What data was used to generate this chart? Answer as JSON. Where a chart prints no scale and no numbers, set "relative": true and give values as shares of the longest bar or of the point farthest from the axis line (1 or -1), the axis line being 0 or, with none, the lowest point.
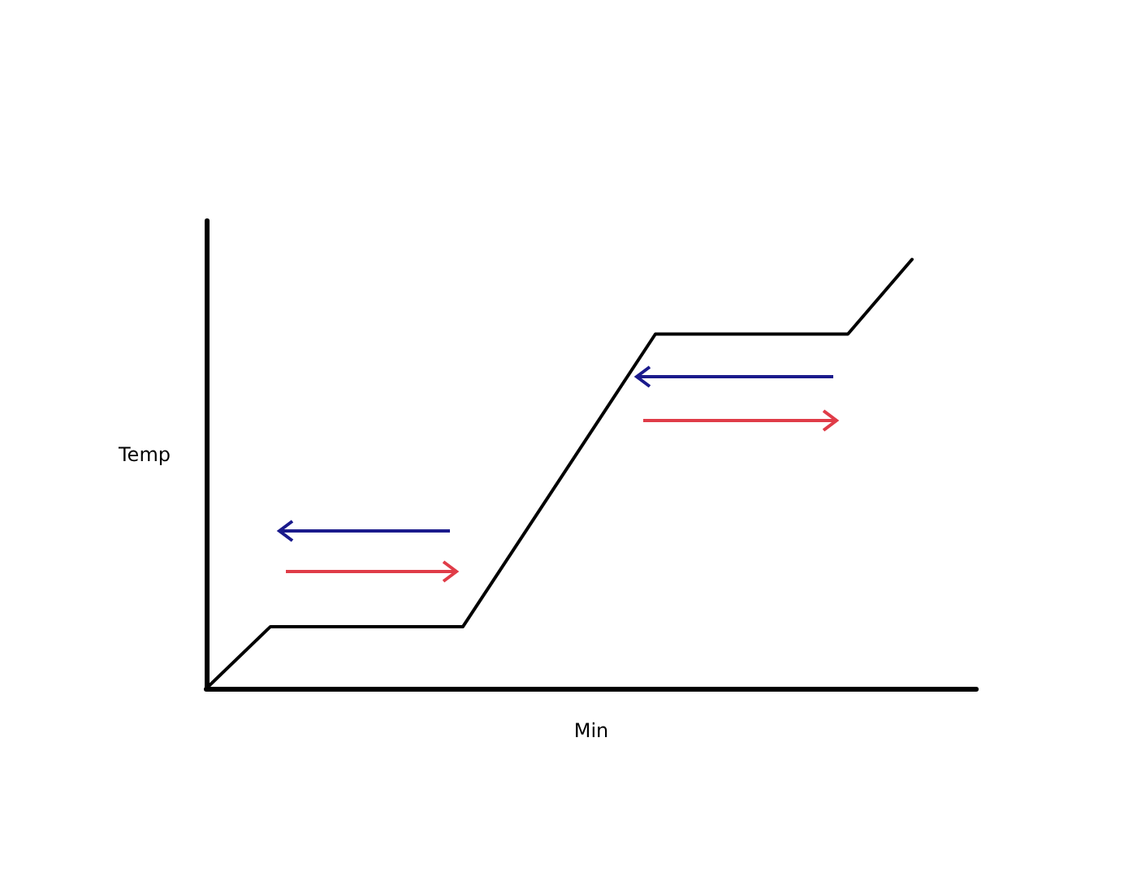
{
  "chart_data": {
    "type": "line",
    "relative": true,
    "xlabel": "Min",
    "ylabel": "Temp",
    "categories": [
      null,
      null,
      null,
      null,
      null,
      null,
      null,
      null,
      null,
      null,
      null,
      null,
      null
    ],
    "series": [
      {
        "color": "#000000",
        "values": [
          0,
          0.144,
          null,
          null,
          0.144,
          null,
          null,
          0.826,
          null,
          null,
          0.826,
          1,
          null
        ]
      }
    ],
    "marker": "none",
    "line_style": "solid"
  }
}
